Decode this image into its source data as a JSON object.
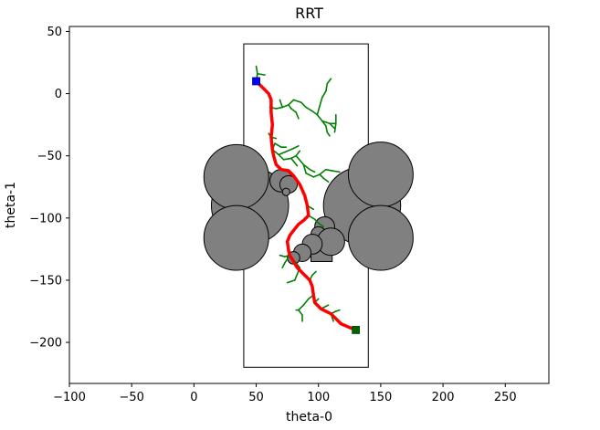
{
  "chart_data": {
    "type": "scatter",
    "title": "RRT",
    "xlabel": "theta-0",
    "ylabel": "theta-1",
    "xlim": [
      -100,
      285
    ],
    "ylim": [
      -233,
      54
    ],
    "xticks": [
      -100,
      -50,
      0,
      50,
      100,
      150,
      200,
      250
    ],
    "yticks": [
      50,
      0,
      -50,
      -100,
      -150,
      -200
    ],
    "xtick_labels": [
      "−100",
      "−50",
      "0",
      "50",
      "100",
      "150",
      "200",
      "250"
    ],
    "ytick_labels": [
      "50",
      "0",
      "−50",
      "−100",
      "−150",
      "−200"
    ],
    "grid": false,
    "colors": {
      "obstacle_fill": "#808080",
      "tree": "#008000",
      "path": "#ff0000",
      "start": "#0000ff",
      "goal": "#006400"
    },
    "workspace_bounds": {
      "x": [
        40,
        140
      ],
      "y": [
        -220,
        40
      ]
    },
    "obstacles": {
      "circles": [
        {
          "cx": 45,
          "cy": -90,
          "r": 31
        },
        {
          "cx": 135,
          "cy": -90,
          "r": 31
        },
        {
          "cx": 34,
          "cy": -67,
          "r": 26
        },
        {
          "cx": 34,
          "cy": -116,
          "r": 26
        },
        {
          "cx": 150,
          "cy": -65,
          "r": 26
        },
        {
          "cx": 150,
          "cy": -116,
          "r": 26
        },
        {
          "cx": 70,
          "cy": -70,
          "r": 9
        },
        {
          "cx": 76,
          "cy": -73,
          "r": 7
        },
        {
          "cx": 74,
          "cy": -79,
          "r": 3
        },
        {
          "cx": 105,
          "cy": -107,
          "r": 8
        },
        {
          "cx": 100,
          "cy": -113,
          "r": 6
        },
        {
          "cx": 110,
          "cy": -119,
          "r": 11
        },
        {
          "cx": 95,
          "cy": -121,
          "r": 8
        },
        {
          "cx": 87,
          "cy": -128,
          "r": 7
        },
        {
          "cx": 80,
          "cy": -132,
          "r": 5
        }
      ],
      "rects": [
        {
          "x0": 94,
          "x1": 111,
          "y0": -135,
          "y1": -120
        }
      ]
    },
    "start": {
      "x": 50,
      "y": 10
    },
    "goal": {
      "x": 130,
      "y": -190
    },
    "path": [
      [
        50,
        10
      ],
      [
        55,
        5
      ],
      [
        60,
        0
      ],
      [
        62,
        -5
      ],
      [
        62,
        -15
      ],
      [
        63,
        -25
      ],
      [
        62,
        -35
      ],
      [
        63,
        -45
      ],
      [
        64,
        -50
      ],
      [
        66,
        -57
      ],
      [
        70,
        -61
      ],
      [
        76,
        -62
      ],
      [
        80,
        -66
      ],
      [
        85,
        -73
      ],
      [
        89,
        -82
      ],
      [
        91,
        -90
      ],
      [
        92,
        -98
      ],
      [
        88,
        -102
      ],
      [
        84,
        -105
      ],
      [
        80,
        -110
      ],
      [
        77,
        -114
      ],
      [
        75,
        -119
      ],
      [
        76,
        -126
      ],
      [
        77,
        -130
      ],
      [
        80,
        -135
      ],
      [
        83,
        -140
      ],
      [
        88,
        -145
      ],
      [
        93,
        -150
      ],
      [
        95,
        -155
      ],
      [
        96,
        -162
      ],
      [
        97,
        -168
      ],
      [
        102,
        -173
      ],
      [
        110,
        -177
      ],
      [
        114,
        -181
      ],
      [
        118,
        -185
      ],
      [
        125,
        -188
      ],
      [
        130,
        -190
      ]
    ],
    "tree_edges": [
      [
        [
          50,
          10
        ],
        [
          51,
          16
        ]
      ],
      [
        [
          51,
          16
        ],
        [
          50,
          22
        ]
      ],
      [
        [
          51,
          16
        ],
        [
          57,
          15
        ]
      ],
      [
        [
          61,
          -11
        ],
        [
          66,
          -12
        ]
      ],
      [
        [
          66,
          -12
        ],
        [
          71,
          -11
        ]
      ],
      [
        [
          71,
          -11
        ],
        [
          76,
          -9
        ]
      ],
      [
        [
          69,
          -5
        ],
        [
          71,
          -11
        ]
      ],
      [
        [
          76,
          -9
        ],
        [
          78,
          -12
        ]
      ],
      [
        [
          78,
          -12
        ],
        [
          82,
          -15
        ]
      ],
      [
        [
          82,
          -15
        ],
        [
          84,
          -20
        ]
      ],
      [
        [
          76,
          -9
        ],
        [
          80,
          -5
        ]
      ],
      [
        [
          80,
          -5
        ],
        [
          86,
          -7
        ]
      ],
      [
        [
          86,
          -7
        ],
        [
          90,
          -11
        ]
      ],
      [
        [
          90,
          -11
        ],
        [
          95,
          -14
        ]
      ],
      [
        [
          95,
          -14
        ],
        [
          99,
          -17
        ]
      ],
      [
        [
          99,
          -17
        ],
        [
          103,
          -22
        ]
      ],
      [
        [
          103,
          -22
        ],
        [
          106,
          -26
        ]
      ],
      [
        [
          106,
          -26
        ],
        [
          107,
          -31
        ]
      ],
      [
        [
          107,
          -31
        ],
        [
          109,
          -34
        ]
      ],
      [
        [
          99,
          -17
        ],
        [
          101,
          -10
        ]
      ],
      [
        [
          101,
          -10
        ],
        [
          103,
          -3
        ]
      ],
      [
        [
          103,
          -3
        ],
        [
          106,
          2
        ]
      ],
      [
        [
          106,
          2
        ],
        [
          107,
          8
        ]
      ],
      [
        [
          107,
          8
        ],
        [
          110,
          12
        ]
      ],
      [
        [
          103,
          -22
        ],
        [
          109,
          -24
        ]
      ],
      [
        [
          109,
          -24
        ],
        [
          114,
          -24
        ]
      ],
      [
        [
          114,
          -24
        ],
        [
          114,
          -17
        ]
      ],
      [
        [
          109,
          -24
        ],
        [
          113,
          -28
        ]
      ],
      [
        [
          114,
          -24
        ],
        [
          113,
          -31
        ]
      ],
      [
        [
          63,
          -45
        ],
        [
          65,
          -40
        ]
      ],
      [
        [
          65,
          -40
        ],
        [
          70,
          -43
        ]
      ],
      [
        [
          70,
          -43
        ],
        [
          74,
          -43
        ]
      ],
      [
        [
          63,
          -45
        ],
        [
          68,
          -49
        ]
      ],
      [
        [
          68,
          -49
        ],
        [
          73,
          -47
        ]
      ],
      [
        [
          73,
          -47
        ],
        [
          80,
          -44
        ]
      ],
      [
        [
          80,
          -44
        ],
        [
          84,
          -42
        ]
      ],
      [
        [
          68,
          -49
        ],
        [
          72,
          -53
        ]
      ],
      [
        [
          72,
          -53
        ],
        [
          78,
          -52
        ]
      ],
      [
        [
          78,
          -52
        ],
        [
          82,
          -50
        ]
      ],
      [
        [
          82,
          -50
        ],
        [
          85,
          -46
        ]
      ],
      [
        [
          82,
          -50
        ],
        [
          88,
          -57
        ]
      ],
      [
        [
          88,
          -57
        ],
        [
          93,
          -61
        ]
      ],
      [
        [
          93,
          -61
        ],
        [
          97,
          -63
        ]
      ],
      [
        [
          78,
          -52
        ],
        [
          83,
          -58
        ]
      ],
      [
        [
          88,
          -57
        ],
        [
          90,
          -64
        ]
      ],
      [
        [
          90,
          -64
        ],
        [
          96,
          -67
        ]
      ],
      [
        [
          96,
          -67
        ],
        [
          101,
          -65
        ]
      ],
      [
        [
          101,
          -65
        ],
        [
          106,
          -61
        ]
      ],
      [
        [
          106,
          -61
        ],
        [
          111,
          -62
        ]
      ],
      [
        [
          111,
          -62
        ],
        [
          117,
          -63
        ]
      ],
      [
        [
          101,
          -65
        ],
        [
          104,
          -68
        ]
      ],
      [
        [
          104,
          -68
        ],
        [
          108,
          -71
        ]
      ],
      [
        [
          60,
          -32
        ],
        [
          62,
          -35
        ]
      ],
      [
        [
          62,
          -35
        ],
        [
          66,
          -36
        ]
      ],
      [
        [
          92,
          -98
        ],
        [
          97,
          -101
        ]
      ],
      [
        [
          97,
          -101
        ],
        [
          100,
          -104
        ]
      ],
      [
        [
          100,
          -104
        ],
        [
          104,
          -107
        ]
      ],
      [
        [
          91,
          -90
        ],
        [
          96,
          -93
        ]
      ],
      [
        [
          77,
          -130
        ],
        [
          73,
          -131
        ]
      ],
      [
        [
          73,
          -131
        ],
        [
          69,
          -130
        ]
      ],
      [
        [
          77,
          -130
        ],
        [
          73,
          -136
        ]
      ],
      [
        [
          73,
          -136
        ],
        [
          71,
          -140
        ]
      ],
      [
        [
          77,
          -130
        ],
        [
          82,
          -136
        ]
      ],
      [
        [
          82,
          -136
        ],
        [
          85,
          -140
        ]
      ],
      [
        [
          85,
          -140
        ],
        [
          83,
          -145
        ]
      ],
      [
        [
          83,
          -145
        ],
        [
          81,
          -150
        ]
      ],
      [
        [
          81,
          -150
        ],
        [
          75,
          -152
        ]
      ],
      [
        [
          93,
          -150
        ],
        [
          95,
          -146
        ]
      ],
      [
        [
          95,
          -146
        ],
        [
          98,
          -143
        ]
      ],
      [
        [
          96,
          -162
        ],
        [
          92,
          -165
        ]
      ],
      [
        [
          92,
          -165
        ],
        [
          88,
          -170
        ]
      ],
      [
        [
          88,
          -170
        ],
        [
          84,
          -174
        ]
      ],
      [
        [
          84,
          -174
        ],
        [
          87,
          -178
        ]
      ],
      [
        [
          87,
          -178
        ],
        [
          87,
          -183
        ]
      ],
      [
        [
          84,
          -174
        ],
        [
          82,
          -174
        ]
      ],
      [
        [
          97,
          -168
        ],
        [
          100,
          -165
        ]
      ],
      [
        [
          102,
          -173
        ],
        [
          104,
          -172
        ]
      ],
      [
        [
          104,
          -172
        ],
        [
          108,
          -170
        ]
      ],
      [
        [
          110,
          -177
        ],
        [
          114,
          -175
        ]
      ],
      [
        [
          114,
          -175
        ],
        [
          117,
          -174
        ]
      ],
      [
        [
          110,
          -177
        ],
        [
          112,
          -183
        ]
      ]
    ]
  }
}
